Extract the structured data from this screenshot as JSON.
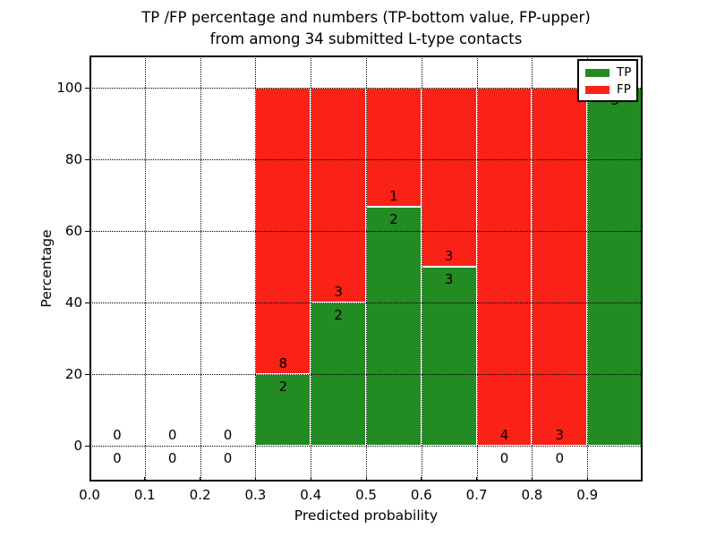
{
  "chart_data": {
    "type": "bar",
    "subtype": "stacked-percentage-histogram",
    "title_lines": [
      "TP /FP percentage and numbers (TP-bottom value, FP-upper)",
      "from among 34 submitted L-type contacts"
    ],
    "xlabel": "Predicted probability",
    "ylabel": "Percentage",
    "x_tick_labels": [
      "0.0",
      "0.1",
      "0.2",
      "0.3",
      "0.4",
      "0.5",
      "0.6",
      "0.7",
      "0.8",
      "0.9"
    ],
    "y_ticks": [
      0,
      20,
      40,
      60,
      80,
      100
    ],
    "xlim": [
      0.0,
      1.0
    ],
    "ylim": [
      -10,
      109
    ],
    "grid": true,
    "legend_position": "upper right",
    "legend": [
      {
        "label": "TP",
        "color": "#228b22"
      },
      {
        "label": "FP",
        "color": "#fa2116"
      }
    ],
    "annotation_note": "FP count printed above each TP/FP boundary, TP count below it",
    "bins": [
      {
        "range": [
          0.0,
          0.1
        ],
        "tp": 0,
        "fp": 0
      },
      {
        "range": [
          0.1,
          0.2
        ],
        "tp": 0,
        "fp": 0
      },
      {
        "range": [
          0.2,
          0.3
        ],
        "tp": 0,
        "fp": 0
      },
      {
        "range": [
          0.3,
          0.4
        ],
        "tp": 2,
        "fp": 8
      },
      {
        "range": [
          0.4,
          0.5
        ],
        "tp": 2,
        "fp": 3
      },
      {
        "range": [
          0.5,
          0.6
        ],
        "tp": 2,
        "fp": 1
      },
      {
        "range": [
          0.6,
          0.7
        ],
        "tp": 3,
        "fp": 3
      },
      {
        "range": [
          0.7,
          0.8
        ],
        "tp": 0,
        "fp": 4
      },
      {
        "range": [
          0.8,
          0.9
        ],
        "tp": 0,
        "fp": 3
      },
      {
        "range": [
          0.9,
          1.0
        ],
        "tp": 3,
        "fp": 0
      }
    ]
  }
}
